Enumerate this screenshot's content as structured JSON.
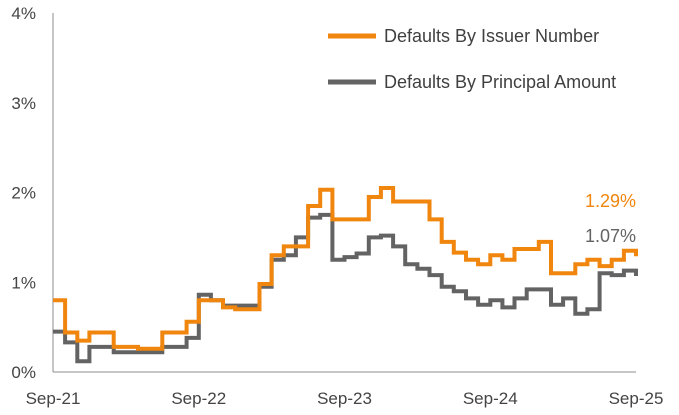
{
  "chart_data": {
    "type": "line",
    "title": "",
    "xlabel": "",
    "ylabel": "",
    "x_ticks": [
      "Sep-21",
      "Sep-22",
      "Sep-23",
      "Sep-24",
      "Sep-25"
    ],
    "y_ticks": [
      "0%",
      "1%",
      "2%",
      "3%",
      "4%"
    ],
    "ylim": [
      0,
      4
    ],
    "xlim": [
      "Sep-21",
      "Sep-25"
    ],
    "grid": false,
    "legend_placement": "top-right",
    "series": [
      {
        "name": "Defaults By Issuer Number",
        "color": "#F0860E",
        "end_label": "1.29%",
        "points": [
          [
            "2021-09",
            0.8
          ],
          [
            "2021-10",
            0.44
          ],
          [
            "2021-11",
            0.35
          ],
          [
            "2021-12",
            0.44
          ],
          [
            "2022-01",
            0.44
          ],
          [
            "2022-02",
            0.28
          ],
          [
            "2022-03",
            0.28
          ],
          [
            "2022-04",
            0.26
          ],
          [
            "2022-05",
            0.26
          ],
          [
            "2022-06",
            0.44
          ],
          [
            "2022-07",
            0.44
          ],
          [
            "2022-08",
            0.56
          ],
          [
            "2022-09",
            0.8
          ],
          [
            "2022-10",
            0.8
          ],
          [
            "2022-11",
            0.72
          ],
          [
            "2022-12",
            0.7
          ],
          [
            "2023-01",
            0.7
          ],
          [
            "2023-02",
            0.98
          ],
          [
            "2023-03",
            1.3
          ],
          [
            "2023-04",
            1.4
          ],
          [
            "2023-05",
            1.4
          ],
          [
            "2023-06",
            1.85
          ],
          [
            "2023-07",
            2.03
          ],
          [
            "2023-08",
            1.7
          ],
          [
            "2023-09",
            1.7
          ],
          [
            "2023-10",
            1.7
          ],
          [
            "2023-11",
            1.95
          ],
          [
            "2023-12",
            2.05
          ],
          [
            "2024-01",
            1.9
          ],
          [
            "2024-02",
            1.9
          ],
          [
            "2024-03",
            1.9
          ],
          [
            "2024-04",
            1.7
          ],
          [
            "2024-05",
            1.45
          ],
          [
            "2024-06",
            1.33
          ],
          [
            "2024-07",
            1.25
          ],
          [
            "2024-08",
            1.2
          ],
          [
            "2024-09",
            1.3
          ],
          [
            "2024-10",
            1.25
          ],
          [
            "2024-11",
            1.37
          ],
          [
            "2024-12",
            1.37
          ],
          [
            "2025-01",
            1.45
          ],
          [
            "2025-02",
            1.1
          ],
          [
            "2025-03",
            1.1
          ],
          [
            "2025-04",
            1.2
          ],
          [
            "2025-05",
            1.25
          ],
          [
            "2025-06",
            1.18
          ],
          [
            "2025-07",
            1.25
          ],
          [
            "2025-08",
            1.35
          ],
          [
            "2025-09",
            1.29
          ]
        ]
      },
      {
        "name": "Defaults By Principal Amount",
        "color": "#636363",
        "end_label": "1.07%",
        "points": [
          [
            "2021-09",
            0.45
          ],
          [
            "2021-10",
            0.33
          ],
          [
            "2021-11",
            0.12
          ],
          [
            "2021-12",
            0.28
          ],
          [
            "2022-01",
            0.28
          ],
          [
            "2022-02",
            0.22
          ],
          [
            "2022-03",
            0.22
          ],
          [
            "2022-04",
            0.22
          ],
          [
            "2022-05",
            0.22
          ],
          [
            "2022-06",
            0.28
          ],
          [
            "2022-07",
            0.28
          ],
          [
            "2022-08",
            0.38
          ],
          [
            "2022-09",
            0.86
          ],
          [
            "2022-10",
            0.8
          ],
          [
            "2022-11",
            0.74
          ],
          [
            "2022-12",
            0.74
          ],
          [
            "2023-01",
            0.74
          ],
          [
            "2023-02",
            0.95
          ],
          [
            "2023-03",
            1.25
          ],
          [
            "2023-04",
            1.3
          ],
          [
            "2023-05",
            1.5
          ],
          [
            "2023-06",
            1.72
          ],
          [
            "2023-07",
            1.75
          ],
          [
            "2023-08",
            1.25
          ],
          [
            "2023-09",
            1.28
          ],
          [
            "2023-10",
            1.32
          ],
          [
            "2023-11",
            1.5
          ],
          [
            "2023-12",
            1.52
          ],
          [
            "2024-01",
            1.4
          ],
          [
            "2024-02",
            1.2
          ],
          [
            "2024-03",
            1.15
          ],
          [
            "2024-04",
            1.08
          ],
          [
            "2024-05",
            0.95
          ],
          [
            "2024-06",
            0.9
          ],
          [
            "2024-07",
            0.82
          ],
          [
            "2024-08",
            0.75
          ],
          [
            "2024-09",
            0.8
          ],
          [
            "2024-10",
            0.72
          ],
          [
            "2024-11",
            0.82
          ],
          [
            "2024-12",
            0.92
          ],
          [
            "2025-01",
            0.92
          ],
          [
            "2025-02",
            0.75
          ],
          [
            "2025-03",
            0.82
          ],
          [
            "2025-04",
            0.65
          ],
          [
            "2025-05",
            0.7
          ],
          [
            "2025-06",
            1.1
          ],
          [
            "2025-07",
            1.08
          ],
          [
            "2025-08",
            1.13
          ],
          [
            "2025-09",
            1.07
          ]
        ]
      }
    ]
  }
}
